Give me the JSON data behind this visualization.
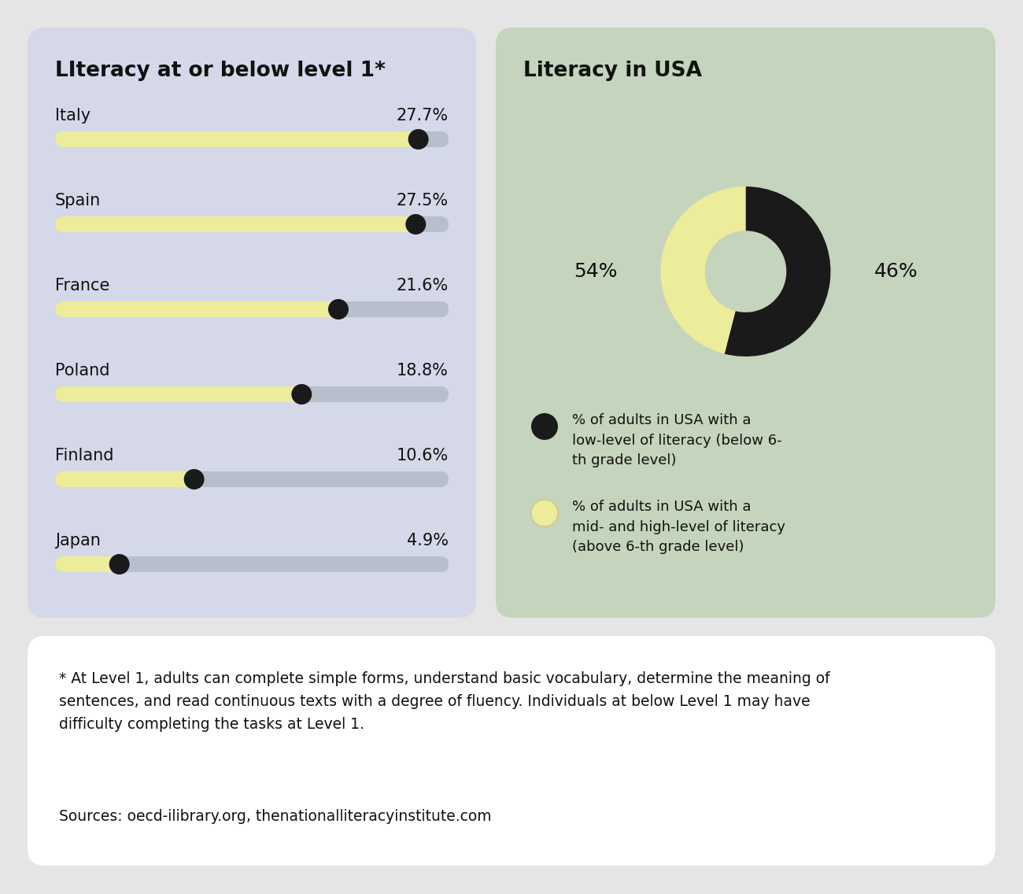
{
  "bg_color": "#e5e5e5",
  "left_panel_bg": "#d4d8e8",
  "right_panel_bg": "#c5d4bc",
  "bottom_panel_bg": "#ffffff",
  "left_title": "LIteracy at or below level 1*",
  "right_title": "Literacy in USA",
  "countries": [
    "Italy",
    "Spain",
    "France",
    "Poland",
    "Finland",
    "Japan"
  ],
  "values": [
    27.7,
    27.5,
    21.6,
    18.8,
    10.6,
    4.9
  ],
  "max_value": 30.0,
  "bar_track_color": "#b8bfcc",
  "bar_fill_color": "#ecec9a",
  "dot_color": "#1a1a1a",
  "donut_low_color": "#1a1a1a",
  "donut_high_color": "#ecec9a",
  "donut_low_pct": 54,
  "donut_high_pct": 46,
  "legend_low_text": "% of adults in USA with a\nlow-level of literacy (below 6-\nth grade level)",
  "legend_high_text": "% of adults in USA with a\nmid- and high-level of literacy\n(above 6-th grade level)",
  "footnote": "* At Level 1, adults can complete simple forms, understand basic vocabulary, determine the meaning of\nsentences, and read continuous texts with a degree of fluency. Individuals at below Level 1 may have\ndifficulty completing the tasks at Level 1.",
  "sources": "Sources: oecd-ilibrary.org, thenationalliteracyinstitute.com"
}
